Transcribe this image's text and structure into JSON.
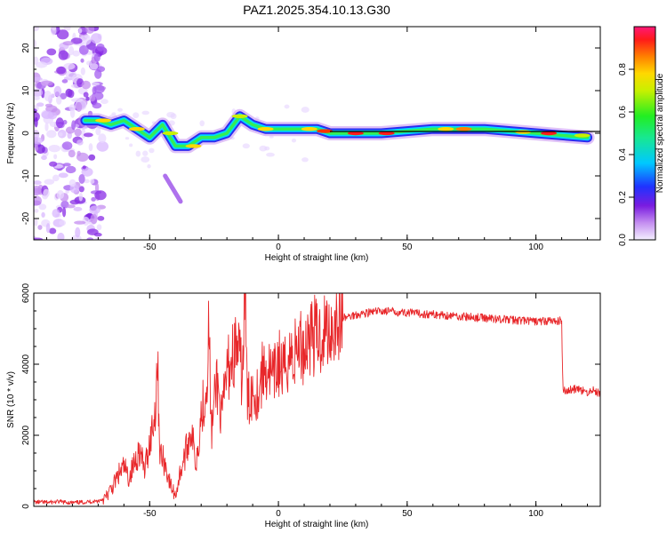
{
  "title": "PAZ1.2025.354.10.13.G30",
  "chart_data": [
    {
      "type": "heatmap",
      "name": "spectrogram",
      "xlabel": "Height of straight line (km)",
      "ylabel": "Frequency (Hz)",
      "xlim": [
        -95,
        125
      ],
      "ylim": [
        -25,
        25
      ],
      "xticks": [
        -50,
        0,
        50,
        100
      ],
      "yticks": [
        -20,
        -10,
        0,
        10,
        20
      ],
      "xtick_labels": [
        "-50",
        "0",
        "50",
        "100"
      ],
      "ytick_labels": [
        "-20",
        "-10",
        "0",
        "10",
        "20"
      ],
      "colorbar_label": "Normalized spectral amplitude",
      "colorbar_range": [
        0,
        1
      ],
      "colorbar_ticks": [
        0.0,
        0.2,
        0.4,
        0.6,
        0.8
      ],
      "colorbar_tick_labels": [
        "0.0",
        "0.2",
        "0.4",
        "0.6",
        "0.8"
      ],
      "ridge": [
        {
          "x": -75,
          "y": 3
        },
        {
          "x": -70,
          "y": 3
        },
        {
          "x": -65,
          "y": 2
        },
        {
          "x": -60,
          "y": 3
        },
        {
          "x": -55,
          "y": 1
        },
        {
          "x": -50,
          "y": -1
        },
        {
          "x": -45,
          "y": 2
        },
        {
          "x": -40,
          "y": -3
        },
        {
          "x": -35,
          "y": -3
        },
        {
          "x": -30,
          "y": -1
        },
        {
          "x": -25,
          "y": -1
        },
        {
          "x": -20,
          "y": 0
        },
        {
          "x": -15,
          "y": 4
        },
        {
          "x": -10,
          "y": 2
        },
        {
          "x": -5,
          "y": 1
        },
        {
          "x": 0,
          "y": 1
        },
        {
          "x": 5,
          "y": 1
        },
        {
          "x": 10,
          "y": 1
        },
        {
          "x": 15,
          "y": 1
        },
        {
          "x": 20,
          "y": 0
        },
        {
          "x": 40,
          "y": 0
        },
        {
          "x": 60,
          "y": 1
        },
        {
          "x": 80,
          "y": 1
        },
        {
          "x": 100,
          "y": 0
        },
        {
          "x": 120,
          "y": -1
        }
      ],
      "branch": [
        {
          "x": -44,
          "y": -10
        },
        {
          "x": -40,
          "y": -14
        },
        {
          "x": -38,
          "y": -16
        }
      ],
      "fitted_line": {
        "x": [
          20,
          125
        ],
        "y": [
          0,
          0
        ]
      }
    },
    {
      "type": "line",
      "name": "snr",
      "xlabel": "Height of straight line (km)",
      "ylabel": "SNR (10 * v/v)",
      "xlim": [
        -95,
        125
      ],
      "ylim": [
        0,
        6000
      ],
      "xticks": [
        -50,
        0,
        50,
        100
      ],
      "yticks": [
        0,
        2000,
        4000,
        6000
      ],
      "xtick_labels": [
        "-50",
        "0",
        "50",
        "100"
      ],
      "ytick_labels": [
        "0",
        "2000",
        "4000",
        "6000"
      ],
      "color": "#e8272a",
      "series": {
        "x": [
          -95,
          -90,
          -85,
          -80,
          -75,
          -70,
          -67,
          -64,
          -62,
          -60,
          -58,
          -56,
          -54,
          -52,
          -50,
          -48,
          -47,
          -46,
          -44,
          -42,
          -40,
          -38,
          -36,
          -34,
          -32,
          -30,
          -28,
          -27,
          -26,
          -24,
          -22,
          -20,
          -18,
          -16,
          -14,
          -13,
          -12,
          -10,
          -8,
          -6,
          -4,
          -2,
          0,
          2,
          4,
          6,
          8,
          10,
          12,
          14,
          16,
          18,
          20,
          22,
          25,
          28,
          30,
          35,
          40,
          45,
          50,
          55,
          60,
          65,
          70,
          75,
          80,
          85,
          90,
          95,
          100,
          105,
          109,
          110,
          110.5,
          112,
          115,
          118,
          120,
          122,
          125
        ],
        "y": [
          120,
          110,
          130,
          100,
          120,
          150,
          250,
          600,
          900,
          1100,
          800,
          1200,
          1600,
          1000,
          1800,
          2600,
          4150,
          1500,
          1200,
          600,
          300,
          1000,
          1500,
          2200,
          1200,
          2600,
          3300,
          5100,
          2000,
          3600,
          2400,
          3800,
          4200,
          4500,
          3600,
          6000,
          2900,
          3300,
          3200,
          3800,
          3900,
          3500,
          4100,
          3700,
          4300,
          4200,
          4600,
          4400,
          4900,
          4800,
          4750,
          5000,
          5000,
          5200,
          5300,
          5350,
          5400,
          5450,
          5500,
          5480,
          5450,
          5420,
          5400,
          5380,
          5350,
          5320,
          5300,
          5280,
          5250,
          5230,
          5200,
          5220,
          5200,
          5250,
          3300,
          3250,
          3300,
          3250,
          3200,
          3280,
          3150
        ]
      }
    }
  ]
}
